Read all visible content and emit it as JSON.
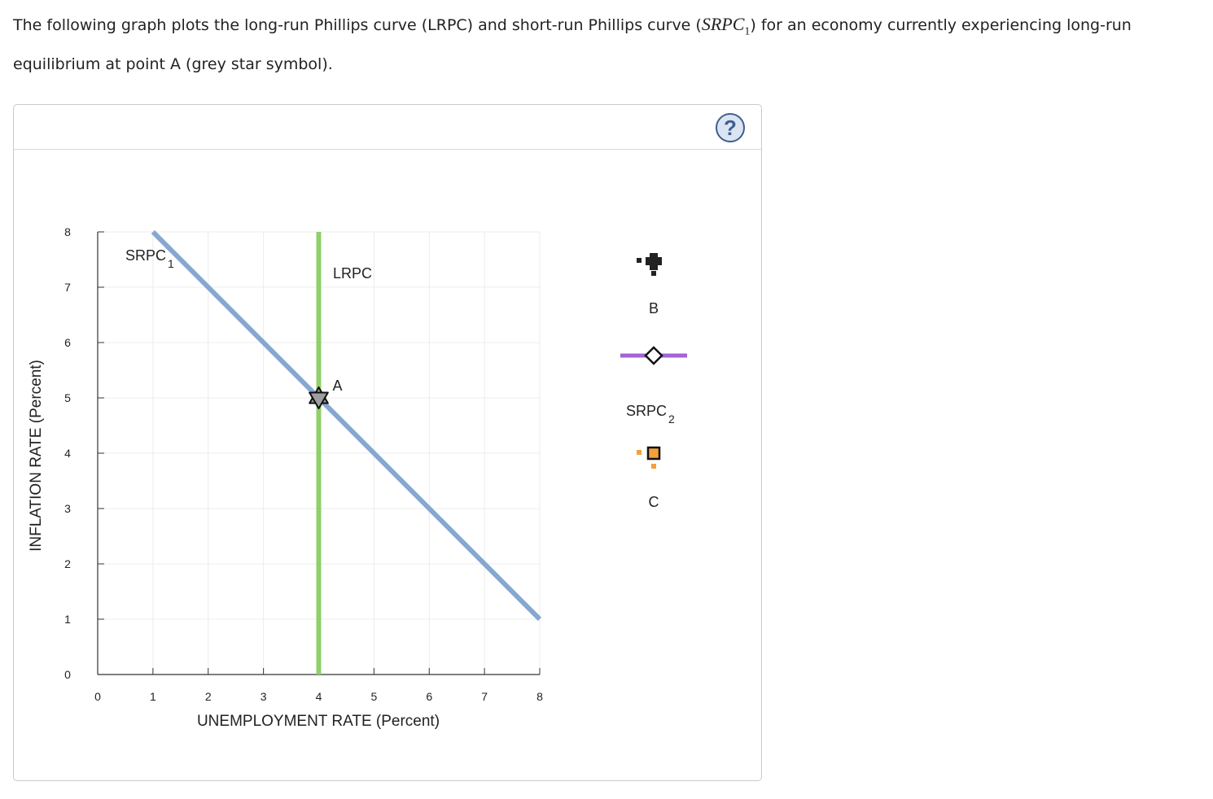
{
  "question": {
    "text_before": "The following graph plots the long-run Phillips curve (LRPC) and short-run Phillips curve (",
    "math_main": "SRPC",
    "math_sub": "1",
    "text_after": ") for an economy currently experiencing long-run equilibrium at point A (grey star symbol)."
  },
  "help_button": {
    "label": "?"
  },
  "chart_data": {
    "type": "line",
    "xlabel": "UNEMPLOYMENT RATE (Percent)",
    "ylabel": "INFLATION RATE (Percent)",
    "xlim": [
      0,
      8
    ],
    "ylim": [
      0,
      8
    ],
    "xticks": [
      0,
      1,
      2,
      3,
      4,
      5,
      6,
      7,
      8
    ],
    "yticks": [
      0,
      1,
      2,
      3,
      4,
      5,
      6,
      7,
      8
    ],
    "grid": true,
    "series": [
      {
        "name": "SRPC",
        "name_sub": "1",
        "color": "#86a8d0",
        "points": [
          [
            1,
            8
          ],
          [
            8,
            1
          ]
        ]
      },
      {
        "name": "LRPC",
        "color": "#90d06a",
        "points": [
          [
            4,
            0
          ],
          [
            4,
            8
          ]
        ]
      }
    ],
    "points": [
      {
        "label": "A",
        "x": 4,
        "y": 5,
        "marker": "star",
        "color": "#9e9e9e"
      }
    ]
  },
  "palette": [
    {
      "label": "B",
      "tool": "black-plus-point",
      "color": "#222222"
    },
    {
      "label": "SRPC",
      "label_sub": "2",
      "tool": "purple-line",
      "color": "#a363d6"
    },
    {
      "label": "C",
      "tool": "orange-square-point",
      "color": "#f5a03a"
    }
  ]
}
